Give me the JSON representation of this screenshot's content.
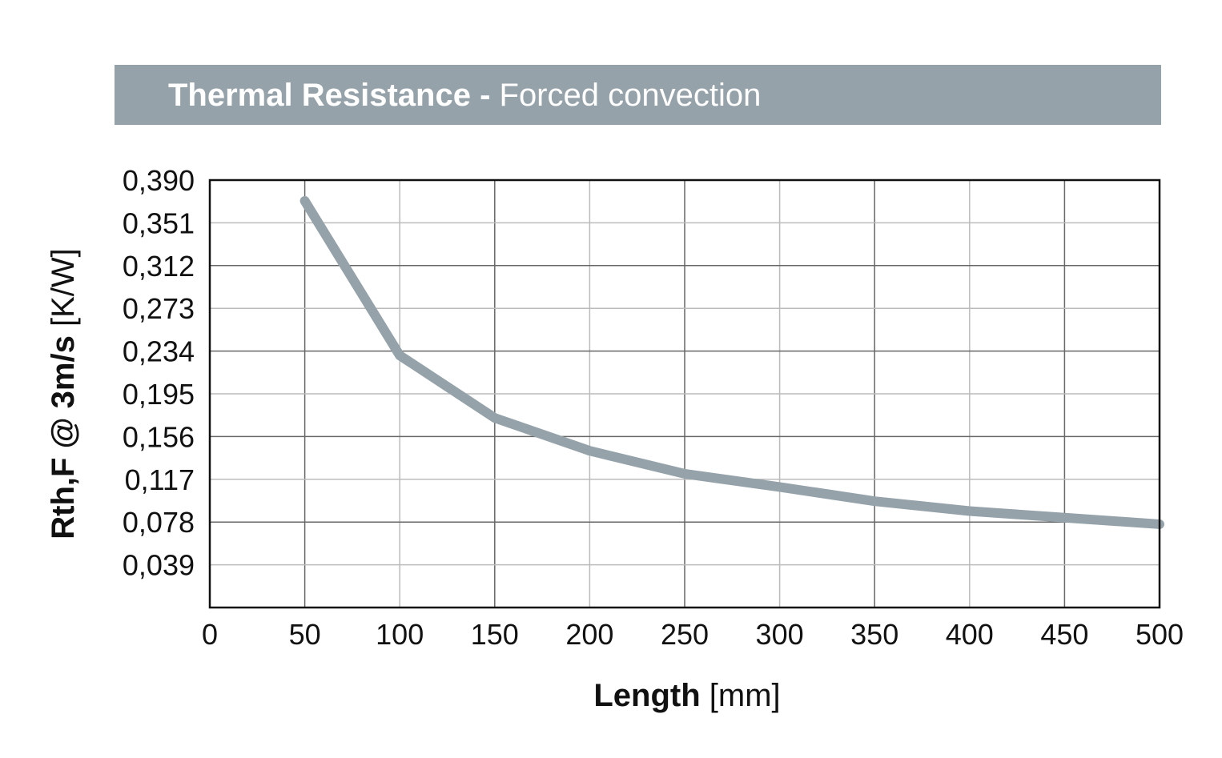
{
  "header": {
    "title_bold": "Thermal Resistance -",
    "title_rest": " Forced convection",
    "bar_color": "#95a2aa"
  },
  "chart_data": {
    "type": "line",
    "title": "Thermal Resistance - Forced convection",
    "xlabel_bold": "Length",
    "xlabel_unit": " [mm]",
    "ylabel_bold": "Rth,F @ 3m/s",
    "ylabel_unit": " [K/W]",
    "xlim": [
      0,
      500
    ],
    "ylim": [
      0,
      0.39
    ],
    "x_ticks": [
      "0",
      "50",
      "100",
      "150",
      "200",
      "250",
      "300",
      "350",
      "400",
      "450",
      "500"
    ],
    "y_ticks": [
      "0,039",
      "0,078",
      "0,117",
      "0,156",
      "0,195",
      "0,234",
      "0,273",
      "0,312",
      "0,351",
      "0,390"
    ],
    "grid": true,
    "series": [
      {
        "color": "#95a2aa",
        "x": [
          50,
          100,
          150,
          200,
          250,
          300,
          350,
          400,
          450,
          500
        ],
        "y": [
          0.371,
          0.23,
          0.173,
          0.143,
          0.122,
          0.11,
          0.097,
          0.088,
          0.082,
          0.076
        ]
      }
    ]
  }
}
